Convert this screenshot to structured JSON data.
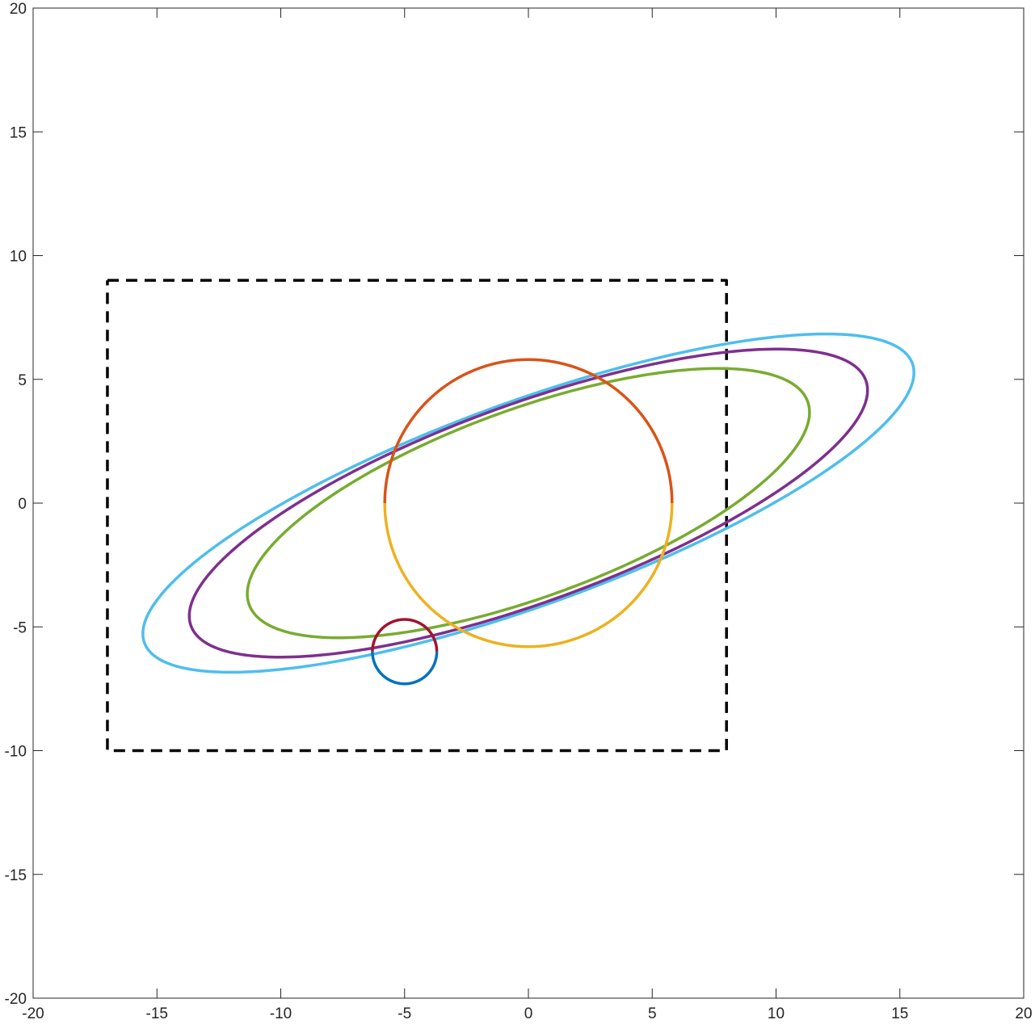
{
  "chart_data": {
    "type": "line",
    "title": "",
    "xlabel": "",
    "ylabel": "",
    "xlim": [
      -20,
      20
    ],
    "ylim": [
      -20,
      20
    ],
    "grid": false,
    "box": true,
    "x_ticks": [
      -20,
      -15,
      -10,
      -5,
      0,
      5,
      10,
      15,
      20
    ],
    "y_ticks": [
      -20,
      -15,
      -10,
      -5,
      0,
      5,
      10,
      15,
      20
    ],
    "x_tick_labels": [
      "-20",
      "-15",
      "-10",
      "-5",
      "0",
      "5",
      "10",
      "15",
      "20"
    ],
    "y_tick_labels": [
      "-20",
      "-15",
      "-10",
      "-5",
      "0",
      "5",
      "10",
      "15",
      "20"
    ],
    "series": [
      {
        "kind": "rectangle",
        "style": "dashed",
        "color": "#000000",
        "x": [
          -17,
          8,
          8,
          -17,
          -17
        ],
        "y": [
          9,
          9,
          -10,
          -10,
          9
        ]
      },
      {
        "kind": "ellipse",
        "color": "#4DBEEE",
        "center": [
          0,
          0
        ],
        "a": 16.5,
        "b": 4.1,
        "rotation_deg": 20
      },
      {
        "kind": "ellipse",
        "color": "#7E2F8E",
        "center": [
          0,
          0
        ],
        "a": 14.5,
        "b": 4.0,
        "rotation_deg": 20
      },
      {
        "kind": "ellipse",
        "color": "#77AC30",
        "center": [
          0,
          0
        ],
        "a": 12.0,
        "b": 3.8,
        "rotation_deg": 20
      },
      {
        "kind": "arc",
        "color": "#EDB120",
        "center": [
          0,
          0
        ],
        "r": 5.8,
        "theta_deg": [
          180,
          360
        ]
      },
      {
        "kind": "arc",
        "color": "#D95319",
        "center": [
          0,
          0
        ],
        "r": 5.8,
        "theta_deg": [
          0,
          180
        ]
      },
      {
        "kind": "arc",
        "color": "#0072BD",
        "center": [
          -5,
          -6
        ],
        "r": 1.3,
        "theta_deg": [
          180,
          360
        ]
      },
      {
        "kind": "arc",
        "color": "#A2142F",
        "center": [
          -5,
          -6
        ],
        "r": 1.3,
        "theta_deg": [
          0,
          180
        ]
      }
    ]
  }
}
